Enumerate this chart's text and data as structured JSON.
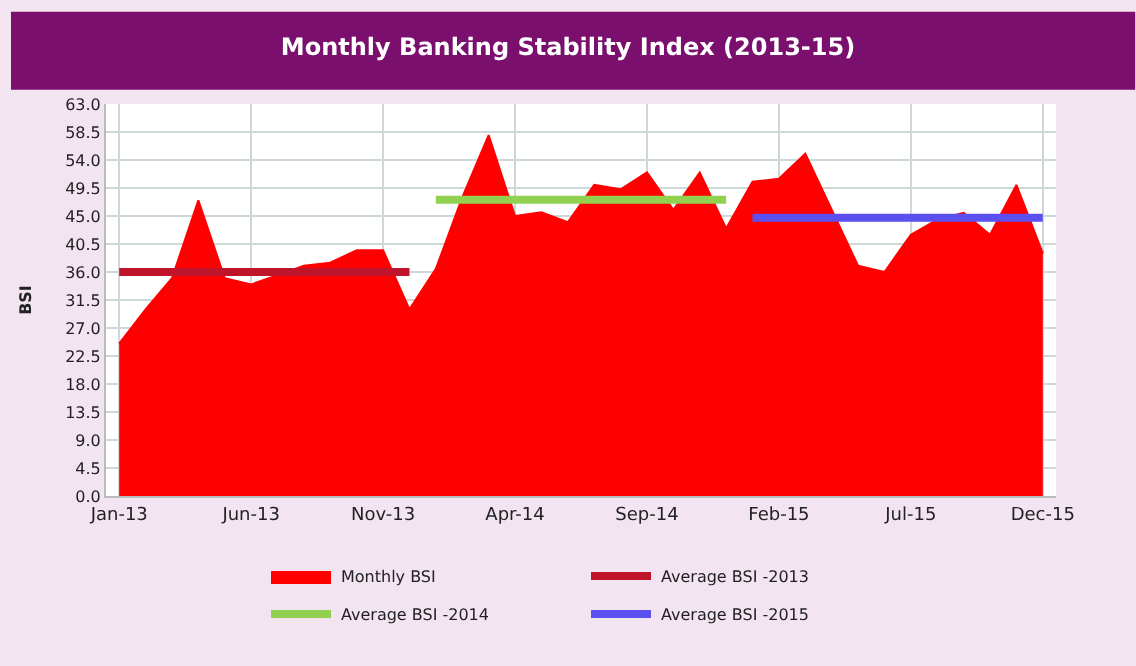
{
  "chart_data": {
    "type": "area",
    "title": "Monthly Banking Stability Index (2013-15)",
    "ylabel": "BSI",
    "categories": [
      "Jan-13",
      null,
      null,
      null,
      null,
      "Jun-13",
      null,
      null,
      null,
      null,
      "Nov-13",
      null,
      null,
      null,
      null,
      "Apr-14",
      null,
      null,
      null,
      null,
      "Sep-14",
      null,
      null,
      null,
      null,
      "Feb-15",
      null,
      null,
      null,
      null,
      "Jul-15",
      null,
      null,
      null,
      null,
      "Dec-15"
    ],
    "series": [
      {
        "name": "Monthly BSI",
        "color": "#ff0000",
        "values": [
          24.5,
          30,
          35,
          47.5,
          35,
          34,
          35.5,
          37,
          37.5,
          39.5,
          39.5,
          30,
          36.5,
          48,
          58,
          45,
          45.6,
          44,
          50,
          49.3,
          52,
          46,
          52,
          43,
          50.5,
          51,
          55,
          46,
          37,
          36,
          42,
          44.4,
          45.5,
          42,
          50,
          39
        ]
      },
      {
        "name": "Average BSI -2013",
        "type": "line",
        "color": "#c0142a",
        "values": [
          36,
          36,
          36,
          36,
          36,
          36,
          36,
          36,
          36,
          36,
          36,
          36,
          null,
          null,
          null,
          null,
          null,
          null,
          null,
          null,
          null,
          null,
          null,
          null,
          null,
          null,
          null,
          null,
          null,
          null,
          null,
          null,
          null,
          null,
          null,
          null
        ]
      },
      {
        "name": "Average BSI -2014",
        "type": "line",
        "color": "#92d050",
        "values": [
          null,
          null,
          null,
          null,
          null,
          null,
          null,
          null,
          null,
          null,
          null,
          null,
          47.6,
          47.6,
          47.6,
          47.6,
          47.6,
          47.6,
          47.6,
          47.6,
          47.6,
          47.6,
          47.6,
          47.6,
          null,
          null,
          null,
          null,
          null,
          null,
          null,
          null,
          null,
          null,
          null,
          null
        ]
      },
      {
        "name": "Average BSI -2015",
        "type": "line",
        "color": "#5b4ff0",
        "values": [
          null,
          null,
          null,
          null,
          null,
          null,
          null,
          null,
          null,
          null,
          null,
          null,
          null,
          null,
          null,
          null,
          null,
          null,
          null,
          null,
          null,
          null,
          null,
          null,
          44.7,
          44.7,
          44.7,
          44.7,
          44.7,
          44.7,
          44.7,
          44.7,
          44.7,
          44.7,
          44.7,
          44.7
        ]
      }
    ],
    "ylim": [
      0,
      63
    ],
    "yticks": [
      {
        "value": 0,
        "label": "0.0"
      },
      {
        "value": 4.5,
        "label": "4.5"
      },
      {
        "value": 9,
        "label": "9.0"
      },
      {
        "value": 13.5,
        "label": "13.5"
      },
      {
        "value": 18,
        "label": "18.0"
      },
      {
        "value": 22.5,
        "label": "22.5"
      },
      {
        "value": 27,
        "label": "27.0"
      },
      {
        "value": 31.5,
        "label": "31.5"
      },
      {
        "value": 36,
        "label": "36.0"
      },
      {
        "value": 40.5,
        "label": "40.5"
      },
      {
        "value": 45,
        "label": "45.0"
      },
      {
        "value": 49.5,
        "label": "49.5"
      },
      {
        "value": 54,
        "label": "54.0"
      },
      {
        "value": 58.5,
        "label": "58.5"
      },
      {
        "value": 63,
        "label": "63.0"
      }
    ],
    "grid": true,
    "legend": "bottom",
    "marker": "none",
    "line_style": "solid"
  }
}
